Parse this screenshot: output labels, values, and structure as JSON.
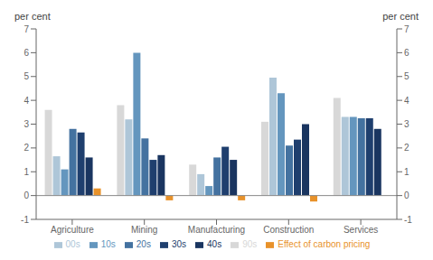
{
  "chart_data": {
    "type": "bar",
    "categories": [
      "Agriculture",
      "Mining",
      "Manufacturing",
      "Construction",
      "Services"
    ],
    "series": [
      {
        "name": "90s",
        "color": "#d8d8d8",
        "values": [
          3.6,
          3.8,
          1.3,
          3.1,
          4.1
        ]
      },
      {
        "name": "00s",
        "color": "#aec6d8",
        "values": [
          1.65,
          3.2,
          0.9,
          4.95,
          3.3
        ]
      },
      {
        "name": "10s",
        "color": "#6496be",
        "values": [
          1.1,
          6.0,
          0.4,
          4.3,
          3.3
        ]
      },
      {
        "name": "20s",
        "color": "#4472a0",
        "values": [
          2.8,
          2.4,
          1.6,
          2.1,
          3.25
        ]
      },
      {
        "name": "30s",
        "color": "#1f3f6e",
        "values": [
          2.65,
          1.5,
          2.05,
          2.35,
          3.25
        ]
      },
      {
        "name": "40s",
        "color": "#1a3560",
        "values": [
          1.6,
          1.7,
          1.5,
          3.0,
          2.8
        ]
      },
      {
        "name": "Effect of carbon pricing",
        "color": "#e8922a",
        "values": [
          0.3,
          -0.2,
          -0.2,
          -0.25,
          0.0
        ]
      }
    ],
    "ylabel": "per cent",
    "y2label": "per cent",
    "ylim": [
      -1,
      7
    ],
    "yticks": [
      -1,
      0,
      1,
      2,
      3,
      4,
      5,
      6,
      7
    ],
    "y2lim": [
      -1,
      7
    ],
    "y2ticks": [
      -1,
      0,
      1,
      2,
      3,
      4,
      5,
      6,
      7
    ],
    "grid": false,
    "legend": "bottom"
  }
}
